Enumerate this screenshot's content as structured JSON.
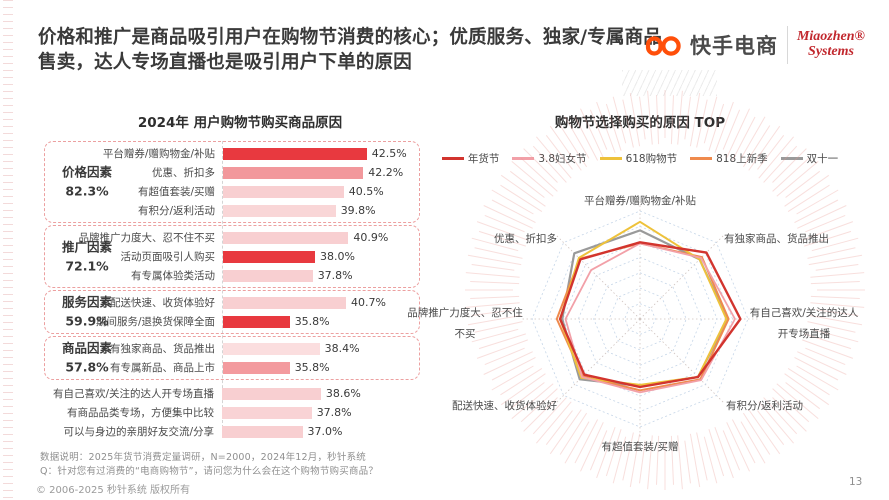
{
  "slide": {
    "title": "价格和推广是商品吸引用户在购物节消费的核心；优质服务、独家/专属商品售卖，达人专场直播也是吸引用户下单的原因",
    "page_number": "13"
  },
  "logo": {
    "kuaishou_text": "快手电商",
    "miaozhen_line1": "Miaozhen®",
    "miaozhen_line2": "Systems",
    "kuaishou_color": "#ff4f0a",
    "miaozhen_color": "#c1272d"
  },
  "bar_chart": {
    "title": "2024年 用户购物节购买商品原因",
    "groups": [
      {
        "label": "价格因素",
        "percent": "82.3%",
        "boxed": true,
        "rows": [
          {
            "label": "平台赠券/赠购物金/补贴",
            "value": 42.5,
            "display": "42.5%",
            "color": "#e8393f"
          },
          {
            "label": "优惠、折扣多",
            "value": 42.2,
            "display": "42.2%",
            "color": "#f2989c"
          },
          {
            "label": "有超值套装/买赠",
            "value": 40.5,
            "display": "40.5%",
            "color": "#f8cfd1"
          },
          {
            "label": "有积分/返利活动",
            "value": 39.8,
            "display": "39.8%",
            "color": "#f9d6d7"
          }
        ]
      },
      {
        "label": "推广因素",
        "percent": "72.1%",
        "boxed": true,
        "rows": [
          {
            "label": "品牌推广力度大、忍不住不买",
            "value": 40.9,
            "display": "40.9%",
            "color": "#f8cfd1"
          },
          {
            "label": "活动页面吸引人购买",
            "value": 38.0,
            "display": "38.0%",
            "color": "#e8393f"
          },
          {
            "label": "有专属体验类活动",
            "value": 37.8,
            "display": "37.8%",
            "color": "#f8cfd1"
          }
        ]
      },
      {
        "label": "服务因素",
        "percent": "59.9%",
        "boxed": true,
        "rows": [
          {
            "label": "配送快速、收货体验好",
            "value": 40.7,
            "display": "40.7%",
            "color": "#f8cfd1"
          },
          {
            "label": "期间服务/退换货保障全面",
            "value": 35.8,
            "display": "35.8%",
            "color": "#e8393f"
          }
        ]
      },
      {
        "label": "商品因素",
        "percent": "57.8%",
        "boxed": true,
        "rows": [
          {
            "label": "有独家商品、货品推出",
            "value": 38.4,
            "display": "38.4%",
            "color": "#fbdedf"
          },
          {
            "label": "有专属新品、商品上市",
            "value": 35.8,
            "display": "35.8%",
            "color": "#f39a9e"
          }
        ]
      },
      {
        "label": "",
        "percent": "",
        "boxed": false,
        "rows": [
          {
            "label": "有自己喜欢/关注的达人开专场直播",
            "value": 38.6,
            "display": "38.6%",
            "color": "#f8cfd1"
          },
          {
            "label": "有商品品类专场，方便集中比较",
            "value": 37.8,
            "display": "37.8%",
            "color": "#f9d3d5"
          },
          {
            "label": "可以与身边的亲朋好友交流/分享",
            "value": 37.0,
            "display": "37.0%",
            "color": "#f8cfd1"
          }
        ]
      }
    ]
  },
  "radar_chart": {
    "title": "购物节选择购买的原因 TOP",
    "axes": [
      "平台赠券/赠购物金/补贴",
      "有独家商品、货品推出",
      "有自己喜欢/关注的达人开专场直播",
      "有积分/返利活动",
      "有超值套装/买赠",
      "配送快速、收货体验好",
      "品牌推广力度大、忍不住不买",
      "优惠、折扣多"
    ],
    "series": [
      {
        "name": "年货节",
        "color": "#d2342e",
        "values": [
          71,
          87,
          93,
          76,
          63,
          73,
          74,
          78
        ]
      },
      {
        "name": "3.8妇女节",
        "color": "#f2a0a8",
        "values": [
          70,
          80,
          88,
          80,
          68,
          76,
          69,
          64
        ]
      },
      {
        "name": "618购物节",
        "color": "#eec23b",
        "values": [
          90,
          78,
          80,
          76,
          61,
          77,
          74,
          80
        ]
      },
      {
        "name": "818上新季",
        "color": "#ef8a4d",
        "values": [
          70,
          81,
          82,
          79,
          66,
          75,
          77,
          79
        ]
      },
      {
        "name": "双十一",
        "color": "#9a9a9a",
        "values": [
          82,
          78,
          81,
          76,
          62,
          79,
          72,
          86
        ]
      }
    ],
    "grid_levels": 7
  },
  "footer": {
    "note1": "数据说明：2025年货节消费定量调研，N=2000，2024年12月，秒针系统",
    "note2": "Q：针对您有过消费的“电商购物节”，请问您为什么会在这个购物节购买商品？",
    "copyright": "© 2006-2025 秒针系统 版权所有"
  },
  "chart_data": [
    {
      "type": "bar",
      "orientation": "horizontal",
      "title": "2024年 用户购物节购买商品原因",
      "categories": [
        "平台赠券/赠购物金/补贴",
        "优惠、折扣多",
        "有超值套装/买赠",
        "有积分/返利活动",
        "品牌推广力度大、忍不住不买",
        "活动页面吸引人购买",
        "有专属体验类活动",
        "配送快速、收货体验好",
        "期间服务/退换货保障全面",
        "有独家商品、货品推出",
        "有专属新品、商品上市",
        "有自己喜欢/关注的达人开专场直播",
        "有商品品类专场，方便集中比较",
        "可以与身边的亲朋好友交流/分享"
      ],
      "values": [
        42.5,
        42.2,
        40.5,
        39.8,
        40.9,
        38.0,
        37.8,
        40.7,
        35.8,
        38.4,
        35.8,
        38.6,
        37.8,
        37.0
      ],
      "unit": "%",
      "group_summaries": [
        {
          "label": "价格因素",
          "value": 82.3
        },
        {
          "label": "推广因素",
          "value": 72.1
        },
        {
          "label": "服务因素",
          "value": 59.9
        },
        {
          "label": "商品因素",
          "value": 57.8
        }
      ]
    },
    {
      "type": "radar",
      "title": "购物节选择购买的原因 TOP",
      "categories": [
        "平台赠券/赠购物金/补贴",
        "有独家商品、货品推出",
        "有自己喜欢/关注的达人开专场直播",
        "有积分/返利活动",
        "有超值套装/买赠",
        "配送快速、收货体验好",
        "品牌推广力度大、忍不住不买",
        "优惠、折扣多"
      ],
      "series": [
        {
          "name": "年货节",
          "values": [
            71,
            87,
            93,
            76,
            63,
            73,
            74,
            78
          ]
        },
        {
          "name": "3.8妇女节",
          "values": [
            70,
            80,
            88,
            80,
            68,
            76,
            69,
            64
          ]
        },
        {
          "name": "618购物节",
          "values": [
            90,
            78,
            80,
            76,
            61,
            77,
            74,
            80
          ]
        },
        {
          "name": "818上新季",
          "values": [
            70,
            81,
            82,
            79,
            66,
            75,
            77,
            79
          ]
        },
        {
          "name": "双十一",
          "values": [
            82,
            78,
            81,
            76,
            62,
            79,
            72,
            86
          ]
        }
      ],
      "scale": [
        0,
        100
      ],
      "grid": true,
      "legend_position": "top"
    }
  ]
}
